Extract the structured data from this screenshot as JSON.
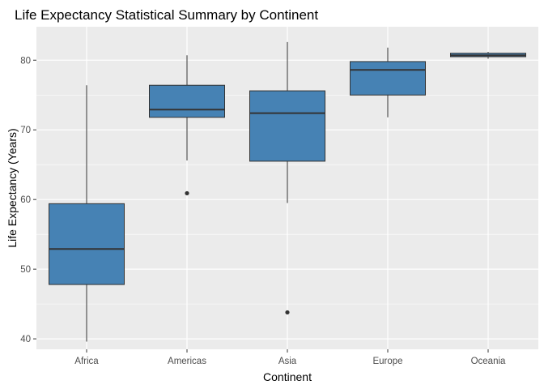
{
  "chart_data": {
    "type": "boxplot",
    "title": "Life Expectancy Statistical Summary by Continent",
    "xlabel": "Continent",
    "ylabel": "Life Expectancy (Years)",
    "ylim": [
      38.5,
      84.8
    ],
    "yticks": [
      40,
      50,
      60,
      70,
      80
    ],
    "grid": true,
    "legend": "none",
    "colors": {
      "panel": "#ebebeb",
      "grid_major": "#ffffff",
      "box_fill": "#4682b4",
      "box_line": "#333333",
      "tick": "#333333"
    },
    "categories": [
      "Africa",
      "Americas",
      "Asia",
      "Europe",
      "Oceania"
    ],
    "boxes": [
      {
        "category": "Africa",
        "min": 39.6,
        "q1": 47.8,
        "median": 52.9,
        "q3": 59.4,
        "max": 76.4,
        "outliers": []
      },
      {
        "category": "Americas",
        "min": 65.6,
        "q1": 71.8,
        "median": 72.9,
        "q3": 76.4,
        "max": 80.7,
        "outliers": [
          60.9
        ]
      },
      {
        "category": "Asia",
        "min": 59.5,
        "q1": 65.5,
        "median": 72.4,
        "q3": 75.6,
        "max": 82.6,
        "outliers": [
          43.8
        ]
      },
      {
        "category": "Europe",
        "min": 71.8,
        "q1": 75.0,
        "median": 78.6,
        "q3": 79.8,
        "max": 81.8,
        "outliers": []
      },
      {
        "category": "Oceania",
        "min": 80.2,
        "q1": 80.5,
        "median": 80.7,
        "q3": 81.0,
        "max": 81.2,
        "outliers": []
      }
    ]
  }
}
